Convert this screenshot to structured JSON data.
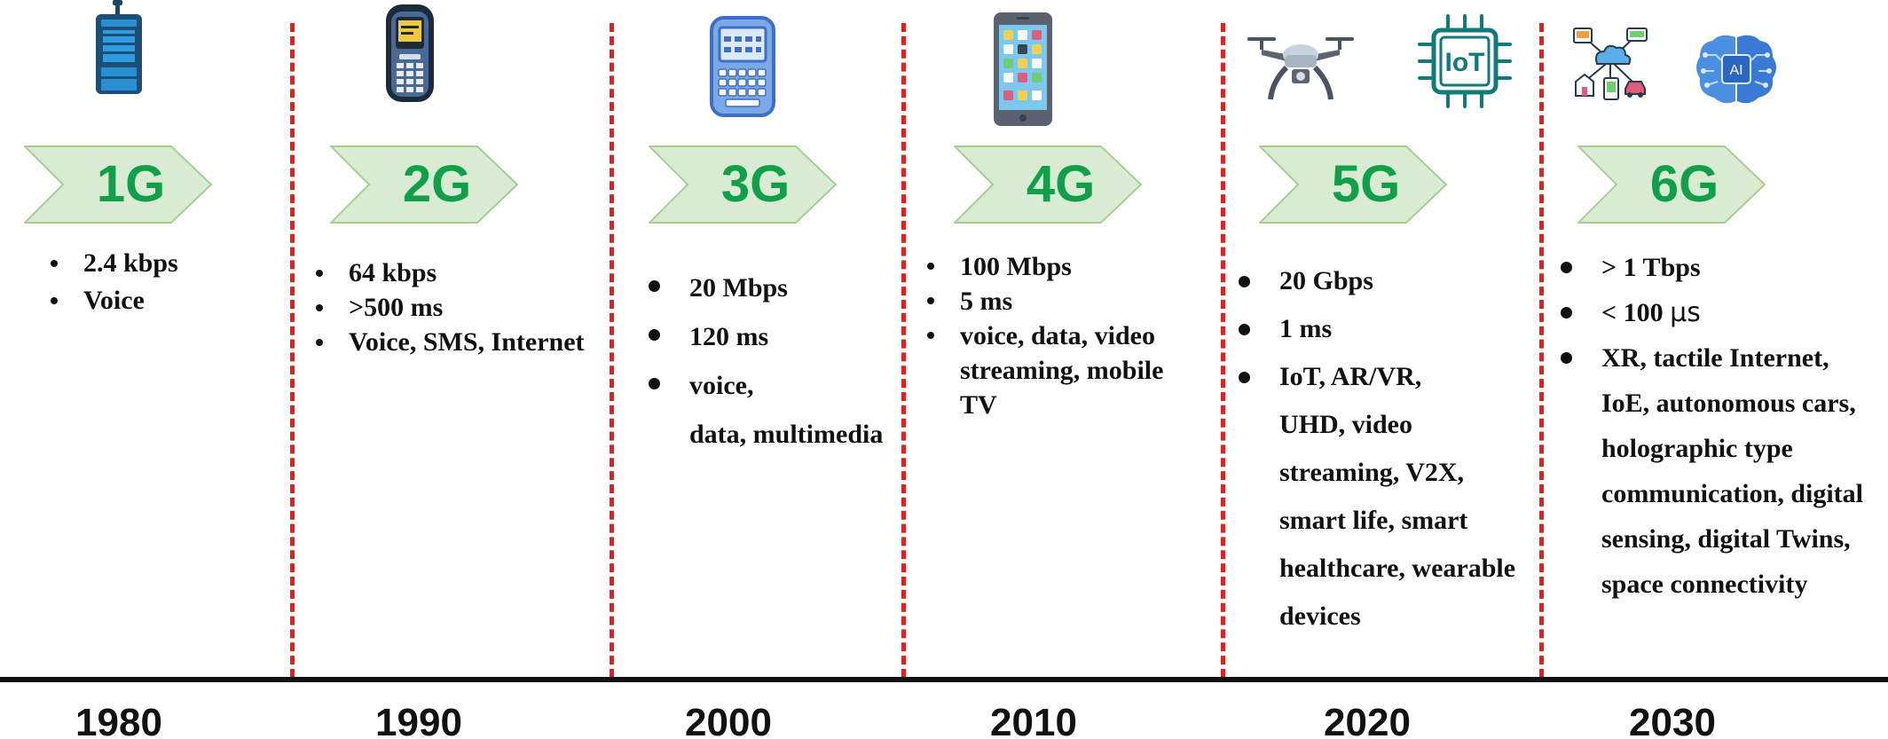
{
  "generations": [
    {
      "label": "1G",
      "year": "1980",
      "icon": "brick-phone-icon",
      "features": [
        "2.4 kbps",
        "Voice"
      ]
    },
    {
      "label": "2G",
      "year": "1990",
      "icon": "feature-phone-icon",
      "features": [
        "64 kbps",
        ">500 ms",
        "Voice, SMS, Internet"
      ]
    },
    {
      "label": "3G",
      "year": "2000",
      "icon": "qwerty-phone-icon",
      "features": [
        "20 Mbps",
        "120 ms",
        "voice,",
        "data, multimedia"
      ]
    },
    {
      "label": "4G",
      "year": "2010",
      "icon": "smartphone-icon",
      "features": [
        "100 Mbps",
        "5 ms",
        "voice, data, video",
        "streaming, mobile",
        "TV"
      ]
    },
    {
      "label": "5G",
      "year": "2020",
      "icons": [
        "drone-icon",
        "iot-chip-icon"
      ],
      "iot_chip_text": "IoT",
      "features": [
        "20 Gbps",
        "1 ms",
        "IoT, AR/VR,",
        "UHD, video",
        "streaming, V2X,",
        "smart life, smart",
        "healthcare, wearable",
        "devices"
      ]
    },
    {
      "label": "6G",
      "year": "2030",
      "icons": [
        "connected-cloud-icon",
        "ai-brain-icon"
      ],
      "ai_text": "AI",
      "features": [
        "> 1 Tbps",
        "< 100 ",
        "µs",
        "XR, tactile Internet,",
        "IoE, autonomous cars,",
        "holographic type",
        "communication, digital",
        "sensing, digital Twins,",
        "space connectivity"
      ]
    }
  ],
  "colors": {
    "arrow_fill": "#d9ecd3",
    "arrow_stroke": "#a6d08f",
    "arrow_text": "#11a04a",
    "divider": "#e61e1e",
    "axis": "#111111"
  }
}
